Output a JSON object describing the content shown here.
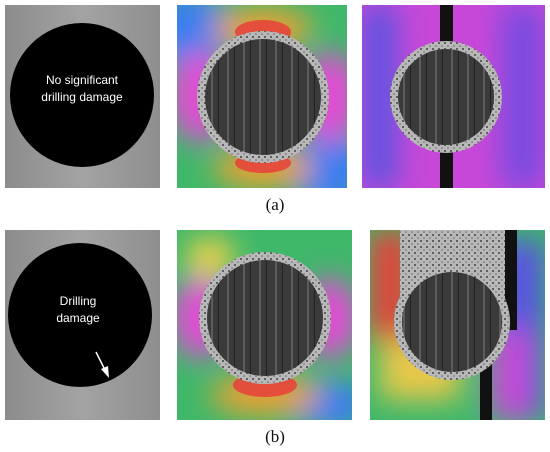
{
  "panels": {
    "a": {
      "annotation": [
        "No significant",
        "drilling damage"
      ],
      "label": "(a)"
    },
    "b": {
      "annotation": [
        "Drilling",
        "damage"
      ],
      "label": "(b)"
    }
  }
}
